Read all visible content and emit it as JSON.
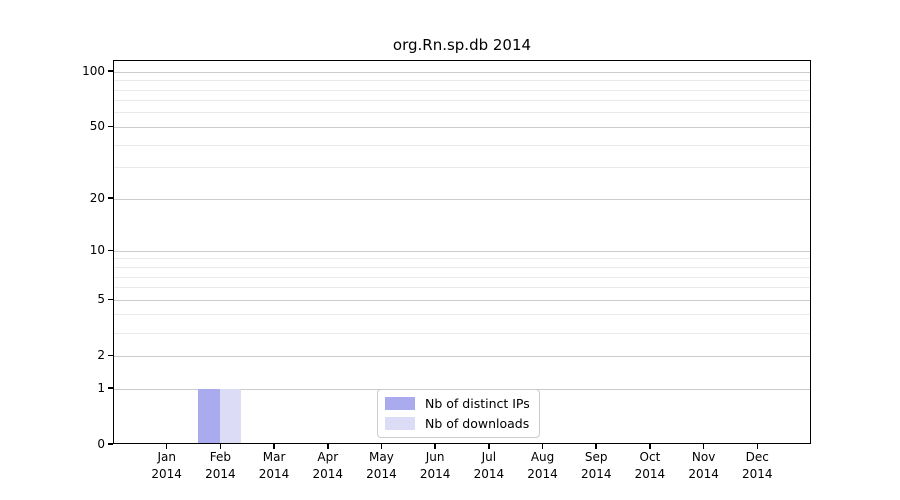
{
  "figure": {
    "background": "#ffffff"
  },
  "chart_data": {
    "type": "bar",
    "title": "org.Rn.sp.db 2014",
    "categories": [
      "Jan",
      "Feb",
      "Mar",
      "Apr",
      "May",
      "Jun",
      "Jul",
      "Aug",
      "Sep",
      "Oct",
      "Nov",
      "Dec"
    ],
    "x_tick_year": "2014",
    "series": [
      {
        "name": "Nb of distinct IPs",
        "color": "#aaaaee",
        "values": [
          0,
          1,
          0,
          0,
          0,
          0,
          0,
          0,
          0,
          0,
          0,
          0
        ]
      },
      {
        "name": "Nb of downloads",
        "color": "#dcdcf7",
        "values": [
          0,
          1,
          0,
          0,
          0,
          0,
          0,
          0,
          0,
          0,
          0,
          0
        ]
      }
    ],
    "xlabel": "",
    "ylabel": "",
    "yscale": "log1p",
    "ylim": [
      0,
      115
    ],
    "yticks": [
      0,
      1,
      2,
      5,
      10,
      20,
      50,
      100
    ],
    "minor_yticks": [
      3,
      4,
      6,
      7,
      8,
      9,
      30,
      40,
      60,
      70,
      80,
      90
    ],
    "grid": "horizontal",
    "legend_position": "lower center"
  }
}
